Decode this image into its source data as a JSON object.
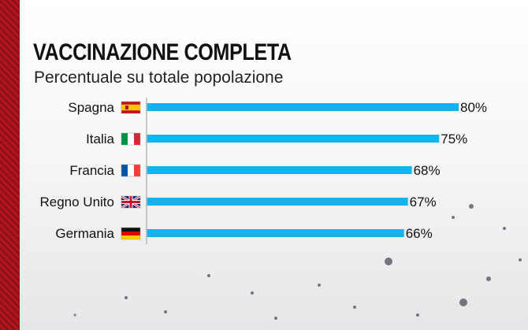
{
  "colors": {
    "bar": "#12b4ef",
    "stripe": "#a0121b",
    "axis": "#b7b7b7"
  },
  "chart_data": {
    "type": "bar",
    "orientation": "horizontal",
    "title": "VACCINAZIONE COMPLETA",
    "subtitle": "Percentuale su totale popolazione",
    "categories": [
      "Spagna",
      "Italia",
      "Francia",
      "Regno Unito",
      "Germania"
    ],
    "flag_icons": [
      "spain-flag-icon",
      "italy-flag-icon",
      "france-flag-icon",
      "uk-flag-icon",
      "germany-flag-icon"
    ],
    "values": [
      80,
      75,
      68,
      67,
      66
    ],
    "data_labels": [
      "80%",
      "75%",
      "68%",
      "67%",
      "66%"
    ],
    "xlim": [
      0,
      80
    ],
    "grid": false,
    "legend": "none"
  }
}
